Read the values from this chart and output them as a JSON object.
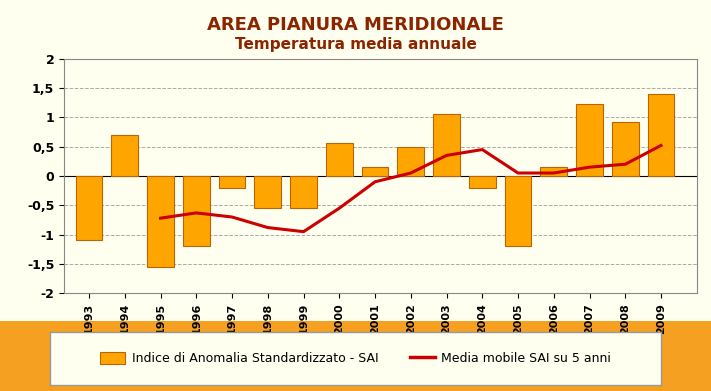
{
  "title1": "AREA PIANURA MERIDIONALE",
  "title2": "Temperatura media annuale",
  "years": [
    1993,
    1994,
    1995,
    1996,
    1997,
    1998,
    1999,
    2000,
    2001,
    2002,
    2003,
    2004,
    2005,
    2006,
    2007,
    2008,
    2009
  ],
  "sai": [
    -1.1,
    0.7,
    -1.55,
    -1.2,
    -0.2,
    -0.55,
    -0.55,
    0.57,
    0.15,
    0.5,
    1.05,
    -0.2,
    -1.2,
    0.15,
    1.22,
    0.92,
    1.4
  ],
  "moving_avg_years": [
    1995,
    1996,
    1997,
    1998,
    1999,
    2000,
    2001,
    2002,
    2003,
    2004,
    2005,
    2006,
    2007,
    2008,
    2009
  ],
  "moving_avg": [
    -0.72,
    -0.63,
    -0.7,
    -0.88,
    -0.95,
    -0.55,
    -0.1,
    0.05,
    0.35,
    0.45,
    0.05,
    0.05,
    0.15,
    0.2,
    0.52
  ],
  "bar_color": "#FFA500",
  "bar_edge_color": "#B8650A",
  "line_color": "#CC0000",
  "plot_bg_color": "#FFFFF0",
  "title_bg_color": "#FFFFF0",
  "outer_bg_color": "#F5A020",
  "legend_bg_color": "#FFFFF0",
  "ylim": [
    -2.0,
    2.0
  ],
  "ytick_vals": [
    -2.0,
    -1.5,
    -1.0,
    -0.5,
    0.0,
    0.5,
    1.0,
    1.5,
    2.0
  ],
  "ytick_labels": [
    "-2",
    "-1,5",
    "-1",
    "-0,5",
    "0",
    "0,5",
    "1",
    "1,5",
    "2"
  ],
  "grid_color": "#AAAAAA",
  "title_color": "#8B2500",
  "title1_fontsize": 13,
  "title2_fontsize": 11,
  "legend_label_bar": "Indice di Anomalia Standardizzato - SAI",
  "legend_label_line": "Media mobile SAI su 5 anni"
}
